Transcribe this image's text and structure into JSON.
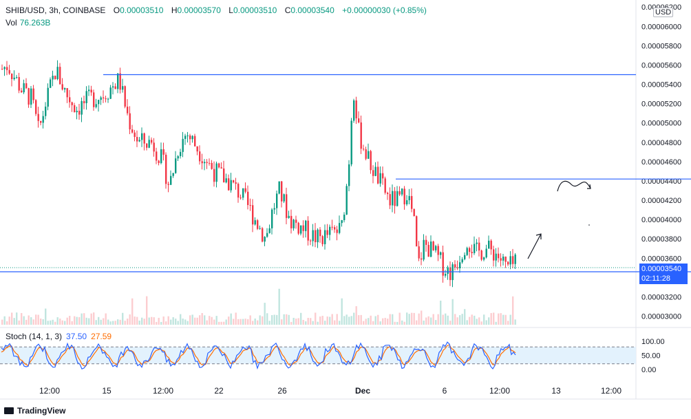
{
  "header": {
    "symbol": "SHIB/USD, 3h, COINBASE",
    "o_label": "O",
    "o_value": "0.00003510",
    "h_label": "H",
    "h_value": "0.00003570",
    "l_label": "L",
    "l_value": "0.00003510",
    "c_label": "C",
    "c_value": "0.00003540",
    "change": "+0.00000030 (+0.85%)"
  },
  "volume": {
    "label": "Vol",
    "value": "76.263B"
  },
  "stoch": {
    "label": "Stoch (14, 1, 3)",
    "k_value": "37.50",
    "d_value": "27.59"
  },
  "currency": "USD",
  "last_price": {
    "price": "0.00003540",
    "countdown": "02:11:28"
  },
  "brand": "TradingView",
  "colors": {
    "up": "#089981",
    "down": "#f23645",
    "line": "#2962ff",
    "stoch_k": "#2962ff",
    "stoch_d": "#ff6d00",
    "band": "#e3f2fd"
  },
  "chart_data": {
    "type": "candlestick",
    "y_ticks": [
      "0.00003000",
      "0.00003200",
      "0.00003400",
      "0.00003600",
      "0.00003800",
      "0.00004000",
      "0.00004200",
      "0.00004400",
      "0.00004600",
      "0.00004800",
      "0.00005000",
      "0.00005200",
      "0.00005400",
      "0.00005600",
      "0.00005800",
      "0.00006000",
      "0.00006200"
    ],
    "ylim": [
      2.94e-05,
      6.23e-05
    ],
    "x_ticks": [
      "12:00",
      "15",
      "12:00",
      "22",
      "26",
      "Dec",
      "6",
      "12:00",
      "13",
      "12:00"
    ],
    "price_path": [
      [
        0,
        5.55e-05
      ],
      [
        10,
        5.6e-05
      ],
      [
        30,
        5.35e-05
      ],
      [
        45,
        5.25e-05
      ],
      [
        55,
        4.9e-05
      ],
      [
        65,
        5.2e-05
      ],
      [
        80,
        5.55e-05
      ],
      [
        95,
        5.3e-05
      ],
      [
        110,
        5.15e-05
      ],
      [
        130,
        5.25e-05
      ],
      [
        150,
        5.3e-05
      ],
      [
        172,
        5.45e-05
      ],
      [
        185,
        5.05e-05
      ],
      [
        200,
        4.8e-05
      ],
      [
        220,
        4.8e-05
      ],
      [
        235,
        4.6e-05
      ],
      [
        245,
        4.35e-05
      ],
      [
        258,
        4.75e-05
      ],
      [
        270,
        4.9e-05
      ],
      [
        290,
        4.7e-05
      ],
      [
        310,
        4.5e-05
      ],
      [
        330,
        4.4e-05
      ],
      [
        350,
        4.25e-05
      ],
      [
        370,
        4e-05
      ],
      [
        385,
        3.8e-05
      ],
      [
        395,
        4.1e-05
      ],
      [
        405,
        4.3e-05
      ],
      [
        420,
        4e-05
      ],
      [
        440,
        3.9e-05
      ],
      [
        460,
        3.8e-05
      ],
      [
        478,
        3.85e-05
      ],
      [
        495,
        3.9e-05
      ],
      [
        505,
        4.5e-05
      ],
      [
        512,
        5.4e-05
      ],
      [
        520,
        4.9e-05
      ],
      [
        535,
        4.6e-05
      ],
      [
        550,
        4.4e-05
      ],
      [
        565,
        4.2e-05
      ],
      [
        580,
        4.2e-05
      ],
      [
        590,
        4.3e-05
      ],
      [
        600,
        4e-05
      ],
      [
        606,
        3.5e-05
      ],
      [
        615,
        3.75e-05
      ],
      [
        630,
        3.65e-05
      ],
      [
        645,
        3.5e-05
      ],
      [
        655,
        3.45e-05
      ],
      [
        665,
        3.6e-05
      ],
      [
        678,
        3.8e-05
      ],
      [
        690,
        3.65e-05
      ],
      [
        705,
        3.7e-05
      ],
      [
        720,
        3.65e-05
      ],
      [
        735,
        3.5e-05
      ],
      [
        750,
        3.54e-05
      ]
    ],
    "support_price": 3.46e-05,
    "resistance_1": {
      "price": 5.5e-05,
      "from_x": 150
    },
    "resistance_2": {
      "price": 4.42e-05,
      "from_x": 575
    },
    "stoch_levels": [
      20,
      80
    ],
    "stoch_ticks": [
      "100.00",
      "50.00",
      "0.00"
    ]
  }
}
